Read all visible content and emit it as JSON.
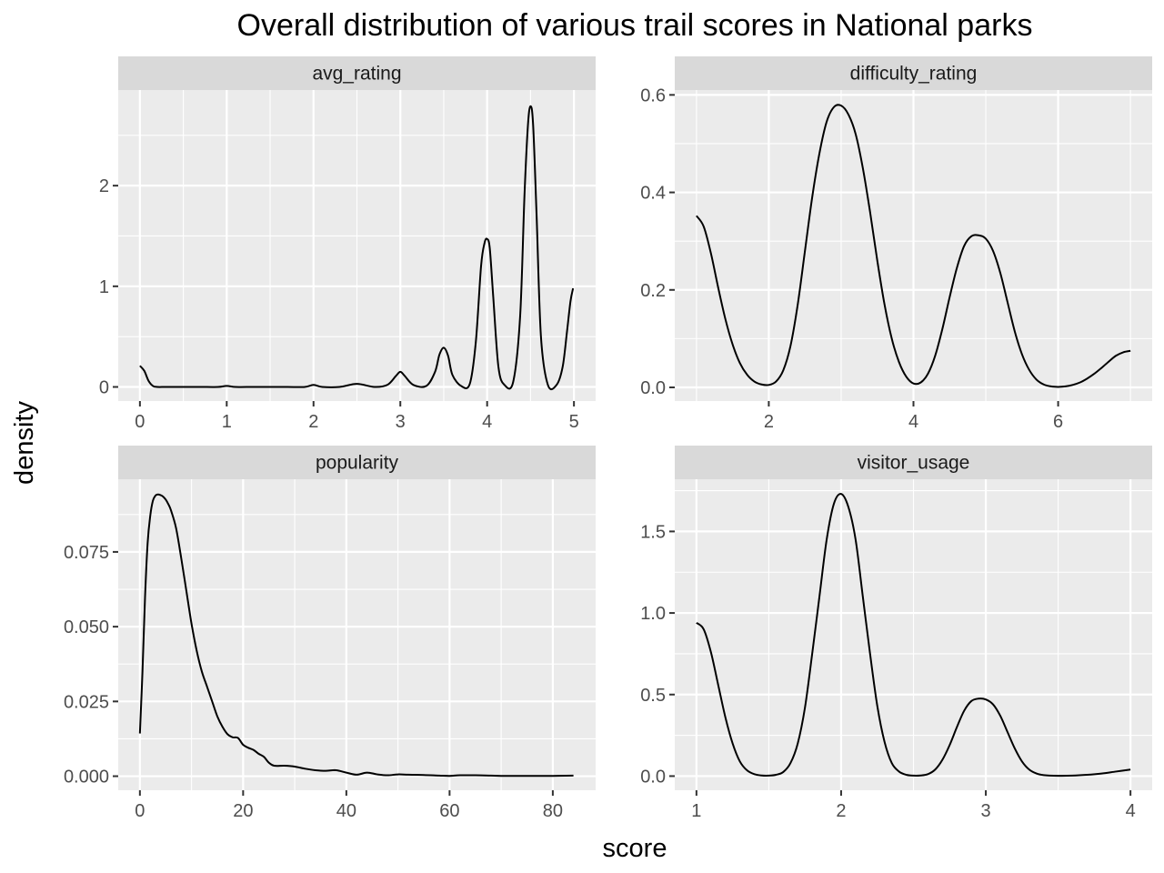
{
  "chart_data": {
    "type": "line",
    "title": "Overall distribution of various trail scores in National parks",
    "xlabel": "score",
    "ylabel": "density",
    "grid": true,
    "legend": "none",
    "panels": [
      {
        "name": "avg_rating",
        "xlim": [
          -0.25,
          5.25
        ],
        "ylim": [
          -0.14,
          2.95
        ],
        "x_ticks": [
          0,
          1,
          2,
          3,
          4,
          5
        ],
        "x_tick_labels": [
          "0",
          "1",
          "2",
          "3",
          "4",
          "5"
        ],
        "y_ticks": [
          0,
          1,
          2
        ],
        "y_tick_labels": [
          "0",
          "1",
          "2"
        ],
        "x": [
          0,
          0.05,
          0.1,
          0.15,
          0.2,
          0.3,
          0.5,
          0.7,
          0.9,
          1.0,
          1.1,
          1.3,
          1.5,
          1.7,
          1.9,
          2.0,
          2.1,
          2.3,
          2.5,
          2.7,
          2.85,
          2.95,
          3.0,
          3.05,
          3.15,
          3.3,
          3.4,
          3.45,
          3.5,
          3.55,
          3.6,
          3.7,
          3.8,
          3.87,
          3.93,
          3.97,
          4.0,
          4.03,
          4.07,
          4.13,
          4.2,
          4.3,
          4.38,
          4.43,
          4.47,
          4.5,
          4.53,
          4.57,
          4.62,
          4.7,
          4.8,
          4.87,
          4.92,
          4.96,
          4.99
        ],
        "y": [
          0.21,
          0.16,
          0.06,
          0.01,
          0.0,
          0.0,
          0.0,
          0.0,
          0.0,
          0.01,
          0.0,
          0.0,
          0.0,
          0.0,
          0.0,
          0.02,
          0.0,
          0.0,
          0.03,
          0.0,
          0.02,
          0.11,
          0.15,
          0.11,
          0.02,
          0.01,
          0.15,
          0.32,
          0.39,
          0.31,
          0.12,
          0.01,
          0.03,
          0.45,
          1.2,
          1.43,
          1.47,
          1.38,
          0.9,
          0.2,
          0.02,
          0.05,
          0.7,
          1.9,
          2.6,
          2.79,
          2.6,
          1.7,
          0.5,
          0.02,
          0.02,
          0.2,
          0.55,
          0.85,
          0.98
        ]
      },
      {
        "name": "difficulty_rating",
        "xlim": [
          0.7,
          7.3
        ],
        "ylim": [
          -0.028,
          0.61
        ],
        "x_ticks": [
          2,
          4,
          6
        ],
        "x_tick_labels": [
          "2",
          "4",
          "6"
        ],
        "y_ticks": [
          0,
          0.2,
          0.4,
          0.6
        ],
        "y_tick_labels": [
          "0.0",
          "0.2",
          "0.4",
          "0.6"
        ],
        "x": [
          1.0,
          1.1,
          1.2,
          1.3,
          1.4,
          1.5,
          1.6,
          1.7,
          1.8,
          1.9,
          2.0,
          2.1,
          2.2,
          2.3,
          2.4,
          2.5,
          2.6,
          2.7,
          2.8,
          2.9,
          3.0,
          3.1,
          3.2,
          3.3,
          3.4,
          3.5,
          3.6,
          3.7,
          3.8,
          3.9,
          4.0,
          4.1,
          4.2,
          4.3,
          4.4,
          4.5,
          4.6,
          4.7,
          4.8,
          4.9,
          5.0,
          5.1,
          5.2,
          5.3,
          5.4,
          5.5,
          5.6,
          5.7,
          5.8,
          5.9,
          6.0,
          6.1,
          6.2,
          6.3,
          6.4,
          6.5,
          6.6,
          6.7,
          6.8,
          6.9,
          7.0
        ],
        "y": [
          0.352,
          0.33,
          0.275,
          0.205,
          0.14,
          0.088,
          0.05,
          0.026,
          0.012,
          0.006,
          0.005,
          0.012,
          0.035,
          0.085,
          0.17,
          0.28,
          0.39,
          0.48,
          0.545,
          0.575,
          0.578,
          0.56,
          0.52,
          0.45,
          0.36,
          0.26,
          0.17,
          0.1,
          0.052,
          0.022,
          0.008,
          0.01,
          0.028,
          0.065,
          0.12,
          0.185,
          0.245,
          0.29,
          0.31,
          0.312,
          0.305,
          0.28,
          0.235,
          0.175,
          0.115,
          0.068,
          0.036,
          0.016,
          0.006,
          0.002,
          0.001,
          0.002,
          0.005,
          0.01,
          0.018,
          0.028,
          0.04,
          0.053,
          0.065,
          0.072,
          0.075
        ]
      },
      {
        "name": "popularity",
        "xlim": [
          -4.2,
          88.3
        ],
        "ylim": [
          -0.0047,
          0.0993
        ],
        "x_ticks": [
          0,
          20,
          40,
          60,
          80
        ],
        "x_tick_labels": [
          "0",
          "20",
          "40",
          "60",
          "80"
        ],
        "y_ticks": [
          0,
          0.025,
          0.05,
          0.075
        ],
        "y_tick_labels": [
          "0.000",
          "0.025",
          "0.050",
          "0.075"
        ],
        "x": [
          0,
          0.5,
          1,
          1.5,
          2,
          2.5,
          3,
          3.5,
          4,
          4.5,
          5,
          5.5,
          6,
          7,
          8,
          9,
          10,
          11,
          12,
          13,
          14,
          15,
          16,
          17,
          18,
          19,
          20,
          21,
          22,
          23,
          24,
          25,
          26,
          28,
          30,
          32,
          34,
          36,
          38,
          40,
          42,
          44,
          46,
          48,
          50,
          52,
          55,
          58,
          60,
          62,
          65,
          68,
          70,
          75,
          80,
          84
        ],
        "y": [
          0.0143,
          0.035,
          0.06,
          0.078,
          0.087,
          0.092,
          0.0938,
          0.0942,
          0.094,
          0.0935,
          0.0925,
          0.091,
          0.089,
          0.083,
          0.073,
          0.062,
          0.051,
          0.042,
          0.035,
          0.03,
          0.025,
          0.02,
          0.0165,
          0.014,
          0.013,
          0.0128,
          0.0105,
          0.0095,
          0.0088,
          0.0075,
          0.0065,
          0.0045,
          0.0035,
          0.0035,
          0.0032,
          0.0025,
          0.002,
          0.0018,
          0.002,
          0.0012,
          0.0005,
          0.0012,
          0.0006,
          0.0003,
          0.0006,
          0.0005,
          0.0004,
          0.0002,
          0.0001,
          0.0003,
          0.0003,
          0.0002,
          0.0001,
          0.0001,
          0.0001,
          0.0002
        ]
      },
      {
        "name": "visitor_usage",
        "xlim": [
          0.85,
          4.15
        ],
        "ylim": [
          -0.0867,
          1.82
        ],
        "x_ticks": [
          1,
          2,
          3,
          4
        ],
        "x_tick_labels": [
          "1",
          "2",
          "3",
          "4"
        ],
        "y_ticks": [
          0,
          0.5,
          1.0,
          1.5
        ],
        "y_tick_labels": [
          "0.0",
          "0.5",
          "1.0",
          "1.5"
        ],
        "x": [
          1.0,
          1.05,
          1.1,
          1.15,
          1.2,
          1.25,
          1.3,
          1.35,
          1.4,
          1.45,
          1.5,
          1.55,
          1.6,
          1.65,
          1.7,
          1.75,
          1.8,
          1.85,
          1.9,
          1.95,
          2.0,
          2.05,
          2.1,
          2.15,
          2.2,
          2.25,
          2.3,
          2.35,
          2.4,
          2.45,
          2.5,
          2.55,
          2.6,
          2.65,
          2.7,
          2.75,
          2.8,
          2.85,
          2.9,
          2.95,
          3.0,
          3.05,
          3.1,
          3.15,
          3.2,
          3.25,
          3.3,
          3.35,
          3.4,
          3.5,
          3.6,
          3.7,
          3.8,
          3.9,
          4.0
        ],
        "y": [
          0.94,
          0.9,
          0.76,
          0.56,
          0.36,
          0.2,
          0.09,
          0.035,
          0.012,
          0.004,
          0.003,
          0.008,
          0.025,
          0.08,
          0.2,
          0.42,
          0.75,
          1.1,
          1.45,
          1.67,
          1.73,
          1.65,
          1.45,
          1.1,
          0.75,
          0.43,
          0.21,
          0.08,
          0.028,
          0.008,
          0.003,
          0.004,
          0.012,
          0.04,
          0.1,
          0.19,
          0.3,
          0.4,
          0.46,
          0.475,
          0.47,
          0.44,
          0.37,
          0.27,
          0.17,
          0.09,
          0.04,
          0.016,
          0.006,
          0.002,
          0.003,
          0.008,
          0.016,
          0.028,
          0.04
        ]
      }
    ]
  }
}
